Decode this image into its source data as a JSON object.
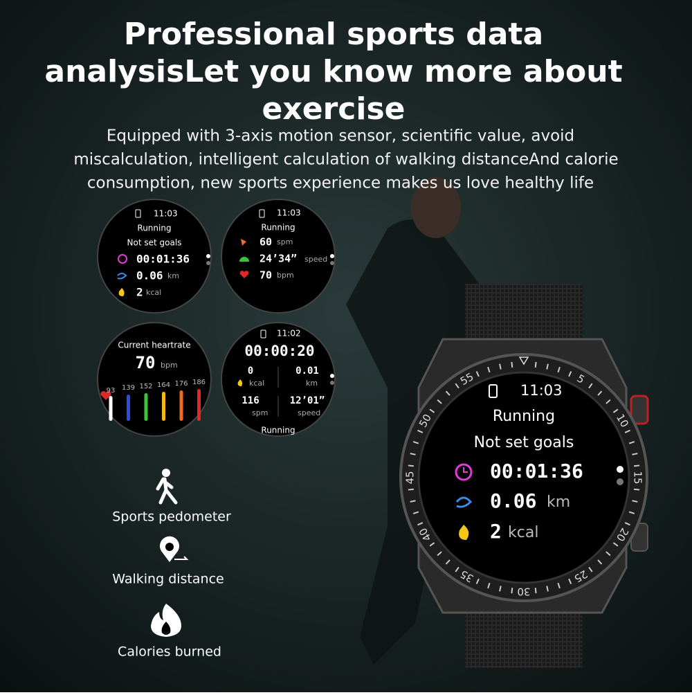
{
  "header": {
    "title_lines": [
      "Professional sports data",
      "analysisLet you know more about",
      "exercise"
    ],
    "subtitle_lines": [
      "Equipped with 3-axis motion sensor, scientific value, avoid",
      "miscalculation, intelligent calculation of walking distanceAnd calorie",
      "consumption, new sports experience makes us love healthy life"
    ]
  },
  "faces": [
    {
      "time": "11:03",
      "mode": "Running",
      "goal": "Not set goals",
      "duration": "00:01:36",
      "distance": "0.06",
      "distance_unit": "km",
      "calories": "2",
      "calories_unit": "kcal"
    },
    {
      "time": "11:03",
      "mode": "Running",
      "cadence": "60",
      "cadence_unit": "spm",
      "pace": "24’34”",
      "pace_unit": "speed",
      "heart": "70",
      "heart_unit": "bpm"
    },
    {
      "label": "Current heartrate",
      "heart": "70",
      "heart_unit": "bpm",
      "zones": [
        93,
        139,
        152,
        164,
        176,
        186
      ]
    },
    {
      "time": "11:02",
      "timer": "00:00:20",
      "calories": "0",
      "calories_unit": "kcal",
      "distance": "0.01",
      "distance_unit": "km",
      "cadence": "116",
      "cadence_unit": "spm",
      "pace": "12’01”",
      "pace_unit": "speed",
      "mode": "Running"
    }
  ],
  "watch": {
    "time": "11:03",
    "mode": "Running",
    "goal": "Not set goals",
    "duration": "00:01:36",
    "distance": "0.06",
    "distance_unit": "km",
    "calories": "2",
    "calories_unit": "kcal",
    "bezel": [
      55,
      5,
      10,
      15,
      20,
      25,
      30,
      35,
      40,
      45,
      50
    ]
  },
  "features": [
    "Sports pedometer",
    "Walking distance",
    "Calories burned"
  ]
}
